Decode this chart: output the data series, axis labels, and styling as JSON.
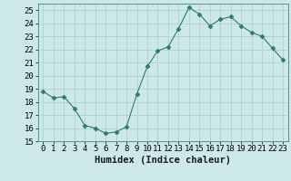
{
  "x": [
    0,
    1,
    2,
    3,
    4,
    5,
    6,
    7,
    8,
    9,
    10,
    11,
    12,
    13,
    14,
    15,
    16,
    17,
    18,
    19,
    20,
    21,
    22,
    23
  ],
  "y": [
    18.8,
    18.3,
    18.4,
    17.5,
    16.2,
    16.0,
    15.6,
    15.7,
    16.1,
    18.6,
    20.7,
    21.9,
    22.2,
    23.6,
    25.2,
    24.7,
    23.8,
    24.3,
    24.5,
    23.8,
    23.3,
    23.0,
    22.1,
    21.2
  ],
  "line_color": "#2d7d6e",
  "marker": "D",
  "marker_size": 2.5,
  "bg_color": "#cce8e8",
  "grid_color": "#aacece",
  "ylim": [
    15,
    25.5
  ],
  "xlim": [
    -0.5,
    23.5
  ],
  "yticks": [
    15,
    16,
    17,
    18,
    19,
    20,
    21,
    22,
    23,
    24,
    25
  ],
  "xticks": [
    0,
    1,
    2,
    3,
    4,
    5,
    6,
    7,
    8,
    9,
    10,
    11,
    12,
    13,
    14,
    15,
    16,
    17,
    18,
    19,
    20,
    21,
    22,
    23
  ],
  "xlabel": "Humidex (Indice chaleur)",
  "tick_fontsize": 6.5,
  "label_fontsize": 7.5
}
